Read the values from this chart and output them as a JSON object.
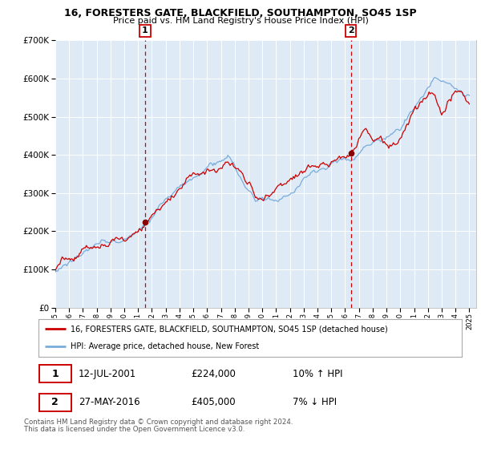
{
  "title": "16, FORESTERS GATE, BLACKFIELD, SOUTHAMPTON, SO45 1SP",
  "subtitle": "Price paid vs. HM Land Registry's House Price Index (HPI)",
  "legend_line1": "16, FORESTERS GATE, BLACKFIELD, SOUTHAMPTON, SO45 1SP (detached house)",
  "legend_line2": "HPI: Average price, detached house, New Forest",
  "transaction1_date": "12-JUL-2001",
  "transaction1_price": 224000,
  "transaction1_hpi": "10% ↑ HPI",
  "transaction2_date": "27-MAY-2016",
  "transaction2_price": 405000,
  "transaction2_hpi": "7% ↓ HPI",
  "footer": "Contains HM Land Registry data © Crown copyright and database right 2024.\nThis data is licensed under the Open Government Licence v3.0.",
  "red_color": "#cc0000",
  "blue_color": "#7aacdb",
  "bg_color": "#deeaf5",
  "marker_color": "#880000",
  "vline_color": "#cc0000",
  "box_color": "#cc0000",
  "grid_color": "#ffffff",
  "ylim": [
    0,
    700000
  ],
  "start_year": 1995,
  "end_year": 2025
}
